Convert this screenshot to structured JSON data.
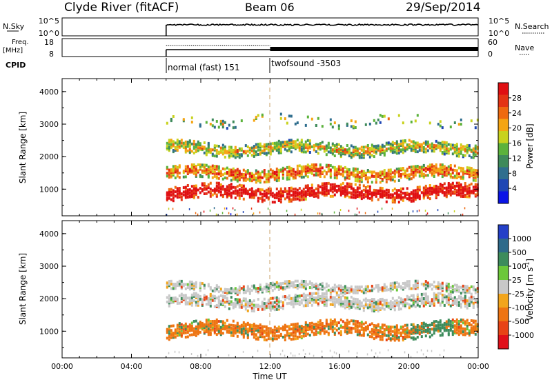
{
  "header": {
    "station": "Clyde River (fitACF)",
    "beam": "Beam 06",
    "date": "29/Sep/2014"
  },
  "chart_data": [
    {
      "type": "line",
      "name": "nsky_nsearch_panel",
      "left_label": "N.Sky",
      "right_label": "N.Search",
      "left_ticks": [
        "10^5",
        "10^0"
      ],
      "right_ticks": [
        "10^5",
        "10^0"
      ],
      "x_range_hours": [
        6.0,
        24.0
      ],
      "level_fraction": 0.62
    },
    {
      "type": "line",
      "name": "freq_nave_panel",
      "left_label": "Freq.\n[MHz]",
      "right_label": "Nave",
      "left_ticks": [
        "18",
        "8"
      ],
      "right_ticks": [
        "60",
        "0"
      ],
      "freq_start_hours": 6.0,
      "nave_start_hours": 12.0
    },
    {
      "type": "table",
      "name": "cpid",
      "label": "CPID",
      "programs": [
        {
          "start_hours": 6.0,
          "name": "normal (fast) 151"
        },
        {
          "start_hours": 12.0,
          "name": "twofsound -3503"
        }
      ]
    },
    {
      "type": "heatmap",
      "name": "power",
      "ylabel": "Slant Range [km]",
      "yticks": [
        1000,
        2000,
        3000,
        4000
      ],
      "ylim": [
        180,
        4400
      ],
      "xlim_hours": [
        0,
        24
      ],
      "colorbar_label": "Power [dB]",
      "colorbar_ticks": [
        "28",
        "24",
        "20",
        "16",
        "12",
        "8",
        "4"
      ],
      "colors": [
        "#0a14e6",
        "#1e46b4",
        "#2f6e8e",
        "#3e8a5a",
        "#5bb23b",
        "#c8d21e",
        "#f5a512",
        "#ee6a10",
        "#e43414",
        "#e00f12"
      ],
      "data_start_hours": 6.0,
      "layers": [
        {
          "center_km": 900,
          "width_km": 420,
          "bias": 0.82
        },
        {
          "center_km": 1500,
          "width_km": 400,
          "bias": 0.55
        },
        {
          "center_km": 2250,
          "width_km": 380,
          "bias": 0.38
        },
        {
          "center_km": 3100,
          "width_km": 300,
          "bias": 0.3
        }
      ]
    },
    {
      "type": "heatmap",
      "name": "velocity",
      "ylabel": "Slant Range [km]",
      "yticks": [
        1000,
        2000,
        3000,
        4000
      ],
      "ylim": [
        180,
        4400
      ],
      "xlim_hours": [
        0,
        24
      ],
      "colorbar_label": "Velocity [m s^-1]",
      "colorbar_ticks": [
        "1000",
        "500",
        "100",
        "25",
        "-25",
        "-100",
        "-500",
        "-1000"
      ],
      "colors": [
        "#2440c8",
        "#2e6a8a",
        "#3d8c5c",
        "#6cc83a",
        "#c8c8c8",
        "#f2a51c",
        "#ee7412",
        "#e84416",
        "#e0101a"
      ],
      "data_start_hours": 6.0,
      "layers": [
        {
          "center_km": 1050,
          "width_km": 480,
          "palette_index": 6
        },
        {
          "center_km": 1900,
          "width_km": 380,
          "palette_index": 4
        },
        {
          "center_km": 2350,
          "width_km": 250,
          "palette_index": 4
        }
      ]
    }
  ],
  "time_axis": {
    "xlabel": "Time UT",
    "ticks": [
      "00:00",
      "04:00",
      "08:00",
      "12:00",
      "16:00",
      "20:00",
      "00:00"
    ]
  }
}
